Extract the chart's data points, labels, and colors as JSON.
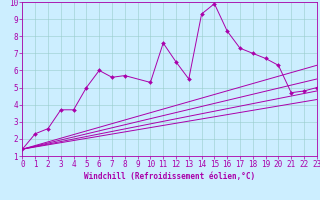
{
  "title": "",
  "xlabel": "Windchill (Refroidissement éolien,°C)",
  "xlim": [
    0,
    23
  ],
  "ylim": [
    1,
    10
  ],
  "xticks": [
    0,
    1,
    2,
    3,
    4,
    5,
    6,
    7,
    8,
    9,
    10,
    11,
    12,
    13,
    14,
    15,
    16,
    17,
    18,
    19,
    20,
    21,
    22,
    23
  ],
  "yticks": [
    1,
    2,
    3,
    4,
    5,
    6,
    7,
    8,
    9,
    10
  ],
  "bg_color": "#cceeff",
  "line_color": "#aa00aa",
  "grid_color": "#99cccc",
  "line1_x": [
    0,
    1,
    2,
    3,
    4,
    5,
    6,
    7,
    8,
    10,
    11,
    12,
    13,
    14,
    15,
    16,
    17,
    18,
    19,
    20,
    21,
    22,
    23
  ],
  "line1_y": [
    1.4,
    2.3,
    2.6,
    3.7,
    3.7,
    5.0,
    6.0,
    5.6,
    5.7,
    5.3,
    7.6,
    6.5,
    5.5,
    9.3,
    9.9,
    8.3,
    7.3,
    7.0,
    6.7,
    6.3,
    4.7,
    4.8,
    5.0
  ],
  "line2_x": [
    0,
    23
  ],
  "line2_y": [
    1.4,
    6.3
  ],
  "line3_x": [
    0,
    23
  ],
  "line3_y": [
    1.4,
    5.5
  ],
  "line4_x": [
    0,
    23
  ],
  "line4_y": [
    1.4,
    4.8
  ],
  "line5_x": [
    0,
    23
  ],
  "line5_y": [
    1.4,
    4.3
  ],
  "xlabel_fontsize": 5.5,
  "tick_fontsize": 5.5
}
